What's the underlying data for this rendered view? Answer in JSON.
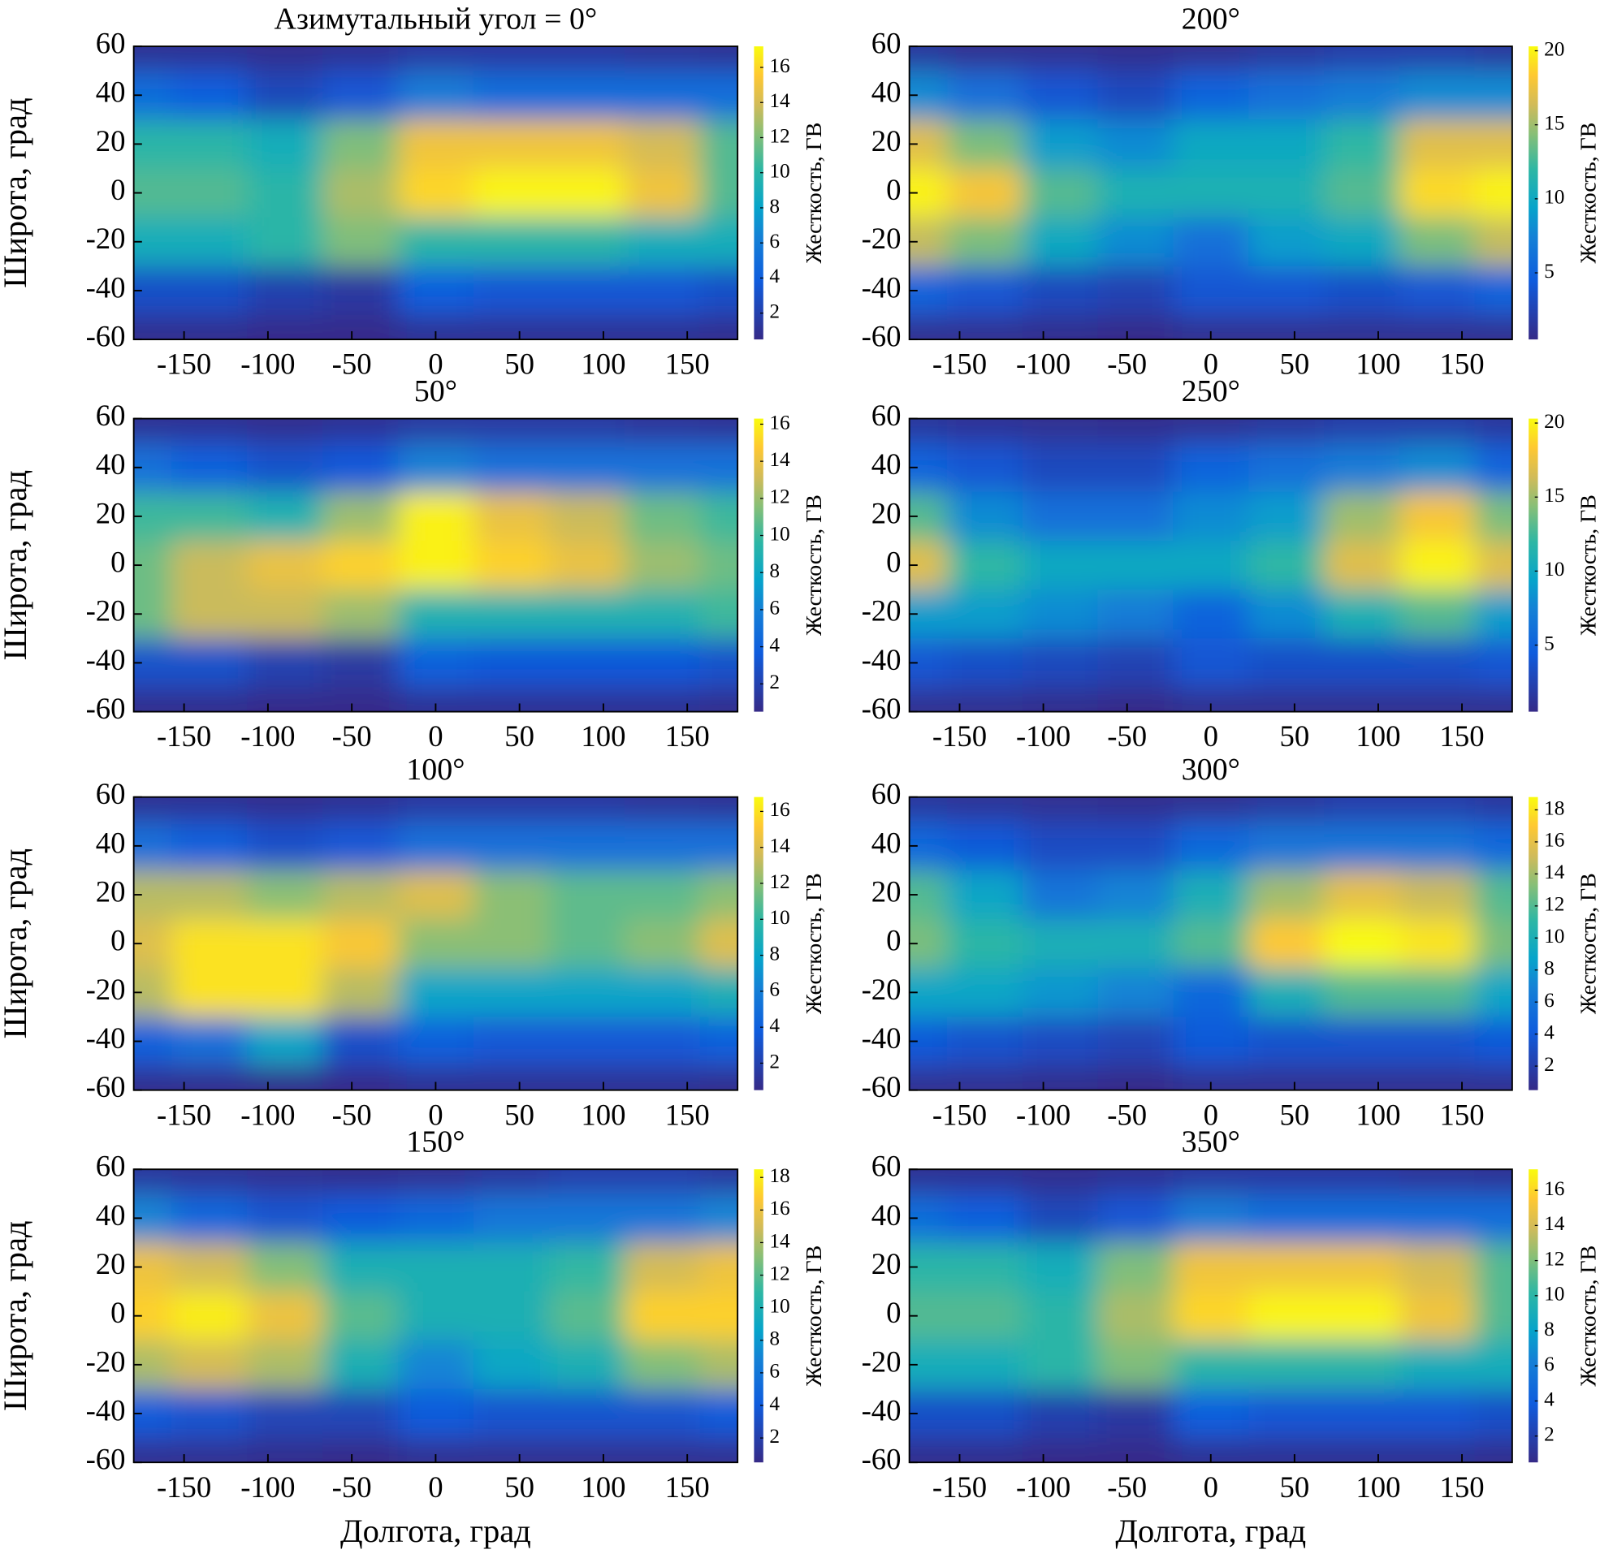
{
  "chart_data": [
    {
      "type": "heatmap",
      "title": "Азимутальный угол = 0°",
      "ylabel": "Широта, град",
      "colorbar_label": "Жесткость, ГВ",
      "x": [
        -180,
        -135,
        -90,
        -45,
        0,
        45,
        90,
        135,
        180
      ],
      "y": [
        60,
        40,
        20,
        0,
        -20,
        -40,
        -60
      ],
      "values": [
        [
          1,
          1,
          0.8,
          1,
          1.5,
          1.5,
          1.5,
          1.2,
          1
        ],
        [
          5,
          4,
          2.5,
          3.5,
          6,
          5,
          5,
          5,
          5
        ],
        [
          10,
          10,
          9,
          12,
          15,
          15,
          15,
          14,
          11
        ],
        [
          11,
          11,
          10,
          13,
          16,
          17,
          17,
          15,
          11
        ],
        [
          9,
          9,
          10,
          12,
          10,
          10,
          10,
          9,
          9
        ],
        [
          3,
          3,
          2,
          1.5,
          4,
          3.5,
          3.5,
          3.5,
          3
        ],
        [
          0.8,
          0.8,
          0.6,
          0.6,
          1,
          1,
          1,
          1,
          0.8
        ]
      ],
      "xlim": [
        -180,
        180
      ],
      "ylim": [
        -60,
        60
      ],
      "xticks": [
        -150,
        -100,
        -50,
        0,
        50,
        100,
        150
      ],
      "yticks": [
        -60,
        -40,
        -20,
        0,
        20,
        40,
        60
      ],
      "clim": [
        0.5,
        17.2
      ],
      "cticks": [
        2,
        4,
        6,
        8,
        10,
        12,
        14,
        16
      ]
    },
    {
      "type": "heatmap",
      "title": "200°",
      "colorbar_label": "Жесткость, ГВ",
      "x": [
        -180,
        -135,
        -90,
        -45,
        0,
        45,
        90,
        135,
        180
      ],
      "y": [
        60,
        40,
        20,
        0,
        -20,
        -40,
        -60
      ],
      "values": [
        [
          1.5,
          1,
          1,
          0.8,
          1,
          1.5,
          2,
          2,
          1.5
        ],
        [
          8,
          6,
          4,
          3,
          5,
          6,
          7,
          8,
          8
        ],
        [
          17,
          14,
          9,
          8,
          10,
          10,
          12,
          17,
          17
        ],
        [
          20,
          18,
          13,
          11,
          11,
          11,
          13,
          19,
          20
        ],
        [
          16,
          14,
          10,
          8,
          6,
          9,
          10,
          14,
          16
        ],
        [
          5,
          4,
          3,
          2.5,
          4,
          4,
          3.5,
          4,
          5
        ],
        [
          1,
          1,
          0.8,
          0.6,
          1,
          1,
          1,
          1,
          1
        ]
      ],
      "xlim": [
        -180,
        180
      ],
      "ylim": [
        -60,
        60
      ],
      "xticks": [
        -150,
        -100,
        -50,
        0,
        50,
        100,
        150
      ],
      "yticks": [
        -60,
        -40,
        -20,
        0,
        20,
        40,
        60
      ],
      "clim": [
        0.5,
        20.3
      ],
      "cticks": [
        5,
        10,
        15,
        20
      ]
    },
    {
      "type": "heatmap",
      "title": "50°",
      "ylabel": "Широта, град",
      "colorbar_label": "Жесткость, ГВ",
      "x": [
        -180,
        -135,
        -90,
        -45,
        0,
        45,
        90,
        135,
        180
      ],
      "y": [
        60,
        40,
        20,
        0,
        -20,
        -40,
        -60
      ],
      "values": [
        [
          1,
          1,
          0.8,
          1,
          1.5,
          1.5,
          1.5,
          1.2,
          1
        ],
        [
          5,
          4,
          3,
          3.5,
          6,
          5,
          5,
          5,
          5
        ],
        [
          10,
          10,
          9,
          12,
          16,
          14,
          13,
          11,
          10
        ],
        [
          11,
          13,
          14,
          15,
          16,
          15,
          14,
          12,
          11
        ],
        [
          11,
          13,
          13,
          12,
          9,
          9,
          9,
          9,
          10
        ],
        [
          3,
          3,
          2,
          1.5,
          4,
          3.5,
          3.5,
          3.5,
          3
        ],
        [
          0.8,
          0.8,
          0.6,
          0.6,
          1,
          1,
          1,
          1,
          0.8
        ]
      ],
      "xlim": [
        -180,
        180
      ],
      "ylim": [
        -60,
        60
      ],
      "xticks": [
        -150,
        -100,
        -50,
        0,
        50,
        100,
        150
      ],
      "yticks": [
        -60,
        -40,
        -20,
        0,
        20,
        40,
        60
      ],
      "clim": [
        0.5,
        16.3
      ],
      "cticks": [
        2,
        4,
        6,
        8,
        10,
        12,
        14,
        16
      ]
    },
    {
      "type": "heatmap",
      "title": "250°",
      "colorbar_label": "Жесткость, ГВ",
      "x": [
        -180,
        -135,
        -90,
        -45,
        0,
        45,
        90,
        135,
        180
      ],
      "y": [
        60,
        40,
        20,
        0,
        -20,
        -40,
        -60
      ],
      "values": [
        [
          1.5,
          1.2,
          1,
          0.8,
          1,
          1.5,
          2,
          2,
          1.5
        ],
        [
          5,
          4,
          3,
          3,
          5,
          6,
          7,
          8,
          5
        ],
        [
          13,
          8,
          6,
          6,
          8,
          9,
          15,
          18,
          14
        ],
        [
          17,
          12,
          10,
          10,
          10,
          12,
          17,
          20,
          17
        ],
        [
          9,
          9,
          8,
          7,
          5,
          8,
          11,
          13,
          9
        ],
        [
          4,
          3.5,
          3,
          2.5,
          4,
          3.5,
          3.5,
          3.5,
          4
        ],
        [
          1,
          1,
          0.8,
          0.6,
          1,
          1,
          1,
          1,
          1
        ]
      ],
      "xlim": [
        -180,
        180
      ],
      "ylim": [
        -60,
        60
      ],
      "xticks": [
        -150,
        -100,
        -50,
        0,
        50,
        100,
        150
      ],
      "yticks": [
        -60,
        -40,
        -20,
        0,
        20,
        40,
        60
      ],
      "clim": [
        0.5,
        20.3
      ],
      "cticks": [
        5,
        10,
        15,
        20
      ]
    },
    {
      "type": "heatmap",
      "title": "100°",
      "ylabel": "Широта, град",
      "colorbar_label": "Жесткость, ГВ",
      "x": [
        -180,
        -135,
        -90,
        -45,
        0,
        45,
        90,
        135,
        180
      ],
      "y": [
        60,
        40,
        20,
        0,
        -20,
        -40,
        -60
      ],
      "values": [
        [
          1,
          1,
          0.8,
          1,
          1.5,
          1.5,
          1.5,
          1.2,
          1
        ],
        [
          5,
          4,
          3,
          3.5,
          5,
          5,
          5,
          5,
          5
        ],
        [
          13,
          13,
          12,
          13,
          14,
          12,
          11,
          11,
          12
        ],
        [
          14,
          16,
          16,
          15,
          12,
          12,
          11,
          12,
          14
        ],
        [
          13,
          16,
          16,
          13,
          8,
          8,
          8,
          8,
          9
        ],
        [
          4,
          5,
          8,
          3,
          4,
          3.5,
          3.5,
          3.5,
          4
        ],
        [
          0.8,
          0.8,
          0.7,
          0.6,
          1,
          1,
          1,
          1,
          0.8
        ]
      ],
      "xlim": [
        -180,
        180
      ],
      "ylim": [
        -60,
        60
      ],
      "xticks": [
        -150,
        -100,
        -50,
        0,
        50,
        100,
        150
      ],
      "yticks": [
        -60,
        -40,
        -20,
        0,
        20,
        40,
        60
      ],
      "clim": [
        0.5,
        16.8
      ],
      "cticks": [
        2,
        4,
        6,
        8,
        10,
        12,
        14,
        16
      ]
    },
    {
      "type": "heatmap",
      "title": "300°",
      "colorbar_label": "Жесткость, ГВ",
      "x": [
        -180,
        -135,
        -90,
        -45,
        0,
        45,
        90,
        135,
        180
      ],
      "y": [
        60,
        40,
        20,
        0,
        -20,
        -40,
        -60
      ],
      "values": [
        [
          1.5,
          1.2,
          1,
          0.8,
          1,
          1.5,
          2,
          2,
          1.5
        ],
        [
          5,
          4,
          3,
          3,
          5,
          6,
          6,
          6,
          5
        ],
        [
          12,
          9,
          6,
          7,
          10,
          14,
          16,
          15,
          12
        ],
        [
          13,
          11,
          10,
          10,
          12,
          17,
          19,
          18,
          13
        ],
        [
          9,
          9,
          8,
          7,
          5,
          10,
          12,
          12,
          9
        ],
        [
          4,
          3.5,
          3,
          2.5,
          4,
          3.5,
          3.5,
          3.5,
          4
        ],
        [
          1,
          1,
          0.8,
          0.6,
          1,
          1,
          1,
          1,
          1
        ]
      ],
      "xlim": [
        -180,
        180
      ],
      "ylim": [
        -60,
        60
      ],
      "xticks": [
        -150,
        -100,
        -50,
        0,
        50,
        100,
        150
      ],
      "yticks": [
        -60,
        -40,
        -20,
        0,
        20,
        40,
        60
      ],
      "clim": [
        0.5,
        18.8
      ],
      "cticks": [
        2,
        4,
        6,
        8,
        10,
        12,
        14,
        16,
        18
      ]
    },
    {
      "type": "heatmap",
      "title": "150°",
      "ylabel": "Широта, град",
      "xlabel": "Долгота, град",
      "colorbar_label": "Жесткость, ГВ",
      "x": [
        -180,
        -135,
        -90,
        -45,
        0,
        45,
        90,
        135,
        180
      ],
      "y": [
        60,
        40,
        20,
        0,
        -20,
        -40,
        -60
      ],
      "values": [
        [
          1.5,
          1.2,
          1,
          0.8,
          1,
          1.5,
          2,
          2,
          1.5
        ],
        [
          7,
          5,
          3.5,
          4,
          5,
          6,
          6,
          6,
          7
        ],
        [
          16,
          15,
          13,
          10,
          10,
          10,
          11,
          15,
          16
        ],
        [
          17,
          18,
          16,
          12,
          10,
          10,
          12,
          17,
          17
        ],
        [
          14,
          15,
          14,
          10,
          7,
          9,
          10,
          13,
          14
        ],
        [
          4,
          3.5,
          2.5,
          2.5,
          4,
          3.5,
          3.5,
          3.5,
          4
        ],
        [
          1,
          1,
          0.8,
          0.6,
          1,
          1,
          1,
          1,
          1
        ]
      ],
      "xlim": [
        -180,
        180
      ],
      "ylim": [
        -60,
        60
      ],
      "xticks": [
        -150,
        -100,
        -50,
        0,
        50,
        100,
        150
      ],
      "yticks": [
        -60,
        -40,
        -20,
        0,
        20,
        40,
        60
      ],
      "clim": [
        0.5,
        18.5
      ],
      "cticks": [
        2,
        4,
        6,
        8,
        10,
        12,
        14,
        16,
        18
      ]
    },
    {
      "type": "heatmap",
      "title": "350°",
      "xlabel": "Долгота, град",
      "colorbar_label": "Жесткость, ГВ",
      "x": [
        -180,
        -135,
        -90,
        -45,
        0,
        45,
        90,
        135,
        180
      ],
      "y": [
        60,
        40,
        20,
        0,
        -20,
        -40,
        -60
      ],
      "values": [
        [
          1,
          1,
          0.8,
          1,
          1.5,
          1.5,
          1.5,
          1.2,
          1
        ],
        [
          5,
          4,
          2.5,
          3.5,
          6,
          5,
          5,
          5,
          5
        ],
        [
          10,
          10,
          9,
          12,
          15,
          15,
          15,
          14,
          11
        ],
        [
          11,
          11,
          10,
          13,
          16,
          17,
          17,
          15,
          11
        ],
        [
          9,
          9,
          10,
          12,
          10,
          10,
          10,
          9,
          9
        ],
        [
          3,
          3,
          2,
          1.5,
          4,
          3.5,
          3.5,
          3.5,
          3
        ],
        [
          0.8,
          0.8,
          0.6,
          0.6,
          1,
          1,
          1,
          1,
          0.8
        ]
      ],
      "xlim": [
        -180,
        180
      ],
      "ylim": [
        -60,
        60
      ],
      "xticks": [
        -150,
        -100,
        -50,
        0,
        50,
        100,
        150
      ],
      "yticks": [
        -60,
        -40,
        -20,
        0,
        20,
        40,
        60
      ],
      "clim": [
        0.5,
        17.2
      ],
      "cticks": [
        2,
        4,
        6,
        8,
        10,
        12,
        14,
        16
      ]
    }
  ]
}
